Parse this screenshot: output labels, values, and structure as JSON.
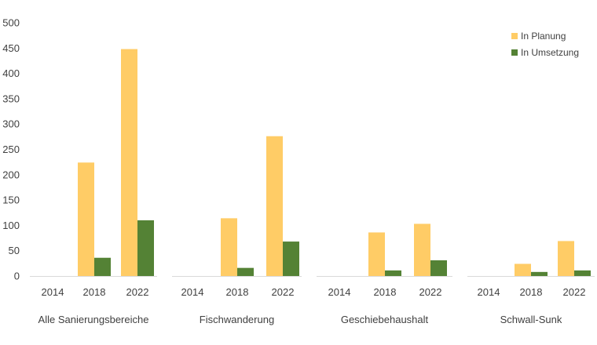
{
  "chart_data": {
    "type": "bar",
    "title": "",
    "xlabel": "",
    "ylabel": "",
    "ylim": [
      0,
      500
    ],
    "yticks": [
      0,
      50,
      100,
      150,
      200,
      250,
      300,
      350,
      400,
      450,
      500
    ],
    "gridlines": false,
    "legend_position": "top-right",
    "groups": [
      {
        "name": "Alle Sanierungsbereiche",
        "years": [
          "2014",
          "2018",
          "2022"
        ]
      },
      {
        "name": "Fischwanderung",
        "years": [
          "2014",
          "2018",
          "2022"
        ]
      },
      {
        "name": "Geschiebehaushalt",
        "years": [
          "2014",
          "2018",
          "2022"
        ]
      },
      {
        "name": "Schwall-Sunk",
        "years": [
          "2014",
          "2018",
          "2022"
        ]
      }
    ],
    "series": [
      {
        "name": "In Planung",
        "color": "#FFCC66",
        "values": [
          [
            0,
            224,
            448
          ],
          [
            0,
            114,
            276
          ],
          [
            0,
            86,
            103
          ],
          [
            0,
            24,
            69
          ]
        ]
      },
      {
        "name": "In Umsetzung",
        "color": "#548235",
        "values": [
          [
            0,
            36,
            110
          ],
          [
            0,
            16,
            68
          ],
          [
            0,
            11,
            31
          ],
          [
            0,
            8,
            11
          ]
        ]
      }
    ]
  }
}
